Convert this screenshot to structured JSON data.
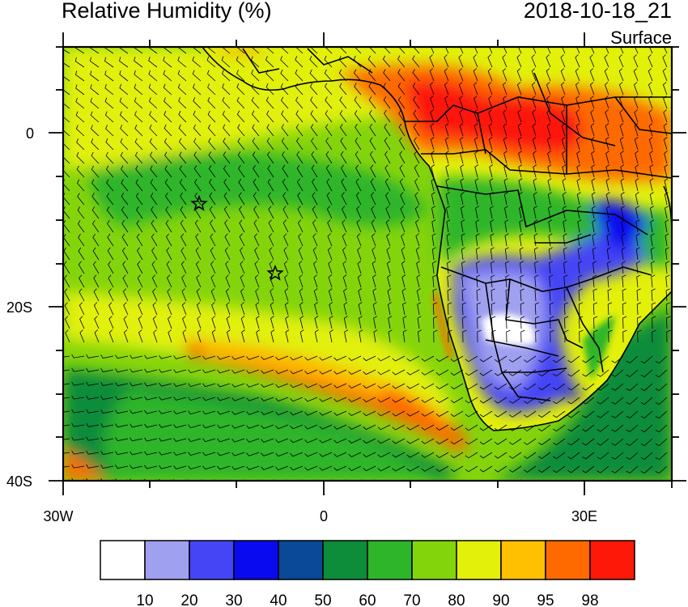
{
  "header": {
    "title": "Relative Humidity (%)",
    "time": "2018-10-18_21",
    "level": "Surface"
  },
  "axes": {
    "x_labels": [
      "30W",
      "0",
      "30E"
    ],
    "y_labels": [
      "0",
      "20S",
      "40S"
    ]
  },
  "colorbar": {
    "colors": [
      "#ffffff",
      "#a0a0f0",
      "#4545f5",
      "#0a0af0",
      "#0a4898",
      "#0d8c3a",
      "#2eb52a",
      "#84d40c",
      "#e2f00a",
      "#fec000",
      "#fe6a00",
      "#fe1808"
    ],
    "labels": [
      "10",
      "20",
      "30",
      "40",
      "50",
      "60",
      "70",
      "80",
      "90",
      "95",
      "98"
    ]
  },
  "markers": [
    {
      "name": "star-marker-1"
    },
    {
      "name": "star-marker-2"
    }
  ]
}
